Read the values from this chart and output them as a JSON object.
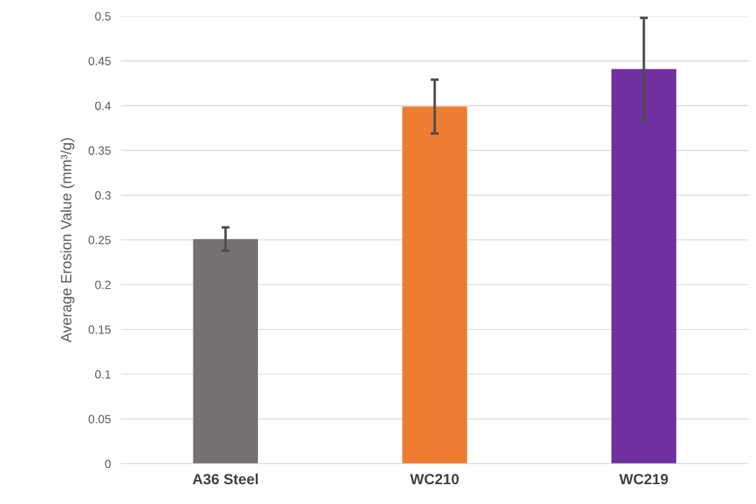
{
  "chart_data": {
    "type": "bar",
    "ylabel": "Average Erosion Value (mm³/g)",
    "categories": [
      "A36 Steel",
      "WC210",
      "WC219"
    ],
    "values": [
      0.251,
      0.399,
      0.441
    ],
    "errors": [
      0.013,
      0.03,
      0.057
    ],
    "colors": [
      "#767171",
      "#ed7d31",
      "#7030a0"
    ],
    "ylim": [
      0,
      0.5
    ],
    "yticks": [
      0,
      0.05,
      0.1,
      0.15,
      0.2,
      0.25,
      0.3,
      0.35,
      0.4,
      0.45,
      0.5
    ],
    "grid": "y"
  }
}
